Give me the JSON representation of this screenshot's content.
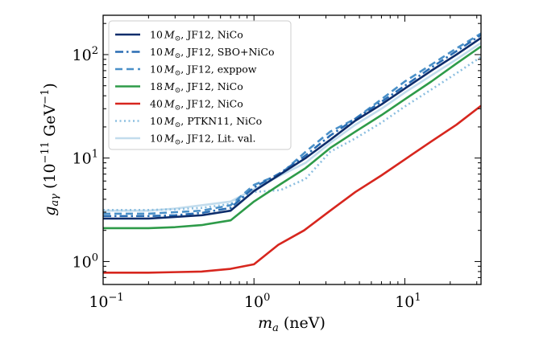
{
  "chart_data": {
    "type": "line",
    "title": "",
    "xlabel": "m_a (neV)",
    "ylabel": "g_aγ (10^-11 GeV^-1)",
    "xscale": "log",
    "yscale": "log",
    "xlim": [
      0.1,
      32
    ],
    "ylim": [
      0.6,
      240
    ],
    "grid": false,
    "legend_position": "top-left",
    "x_ticks": [
      {
        "value": 0.1,
        "mantissa": "10",
        "exponent": "−1"
      },
      {
        "value": 1,
        "mantissa": "10",
        "exponent": "0"
      },
      {
        "value": 10,
        "mantissa": "10",
        "exponent": "1"
      }
    ],
    "y_ticks": [
      {
        "value": 1,
        "mantissa": "10",
        "exponent": "0"
      },
      {
        "value": 10,
        "mantissa": "10",
        "exponent": "1"
      },
      {
        "value": 100,
        "mantissa": "10",
        "exponent": "2"
      }
    ],
    "series": [
      {
        "name": "10 M⊙, JF12, NiCo",
        "color": "#0d2d6b",
        "style": "solid",
        "x": [
          0.1,
          0.2,
          0.3,
          0.45,
          0.7,
          1.0,
          1.5,
          2.2,
          3.2,
          4.7,
          7,
          10,
          15,
          22,
          32
        ],
        "y": [
          2.6,
          2.6,
          2.7,
          2.8,
          3.1,
          4.8,
          7.0,
          10.0,
          15.0,
          23.0,
          33.0,
          47.0,
          70.0,
          100.0,
          145.0
        ]
      },
      {
        "name": "10 M⊙, JF12, SBO+NiCo",
        "color": "#2a6db3",
        "style": "dashdot",
        "x": [
          0.1,
          0.2,
          0.3,
          0.45,
          0.7,
          1.0,
          1.5,
          2.2,
          3.2,
          4.7,
          7,
          10,
          15,
          22,
          32
        ],
        "y": [
          2.75,
          2.75,
          2.8,
          2.95,
          3.3,
          5.2,
          7.2,
          10.6,
          16.5,
          24.0,
          35.0,
          50.0,
          75.0,
          108.0,
          155.0
        ]
      },
      {
        "name": "10 M⊙, JF12, exppow",
        "color": "#4a90c8",
        "style": "dashed",
        "x": [
          0.1,
          0.2,
          0.3,
          0.45,
          0.7,
          1.0,
          1.5,
          2.2,
          3.2,
          4.7,
          7,
          10,
          15,
          22,
          32
        ],
        "y": [
          2.9,
          2.9,
          3.0,
          3.1,
          3.5,
          5.5,
          7.0,
          11.5,
          18.0,
          24.0,
          37.0,
          55.0,
          80.0,
          115.0,
          160.0
        ]
      },
      {
        "name": "18 M⊙, JF12, NiCo",
        "color": "#2e9b49",
        "style": "solid",
        "x": [
          0.1,
          0.2,
          0.3,
          0.45,
          0.7,
          1.0,
          1.5,
          2.2,
          3.2,
          4.7,
          7,
          10,
          15,
          22,
          32
        ],
        "y": [
          2.1,
          2.1,
          2.15,
          2.25,
          2.5,
          3.8,
          5.6,
          8.0,
          12.5,
          18.0,
          26.0,
          37.0,
          55.0,
          82.0,
          120.0
        ]
      },
      {
        "name": "40 M⊙, JF12, NiCo",
        "color": "#d7261e",
        "style": "solid",
        "x": [
          0.1,
          0.2,
          0.3,
          0.45,
          0.7,
          1.0,
          1.45,
          2.15,
          3.2,
          4.7,
          7,
          10,
          15,
          22,
          32
        ],
        "y": [
          0.78,
          0.78,
          0.79,
          0.8,
          0.85,
          0.94,
          1.45,
          2.0,
          3.1,
          4.7,
          6.8,
          9.7,
          14.5,
          21.0,
          32.0
        ]
      },
      {
        "name": "10 M⊙, PTKN11, NiCo",
        "color": "#8cbfe0",
        "style": "dotted",
        "x": [
          0.1,
          0.2,
          0.3,
          0.45,
          0.7,
          1.0,
          1.5,
          2.2,
          3.2,
          4.7,
          7,
          10,
          15,
          22,
          32
        ],
        "y": [
          3.15,
          3.15,
          3.2,
          3.3,
          3.6,
          4.7,
          4.9,
          6.3,
          11.5,
          15.5,
          22.0,
          31.5,
          46.0,
          66.0,
          95.0
        ]
      },
      {
        "name": "10 M⊙, JF12, Lit. val.",
        "color": "#c2dced",
        "style": "solid",
        "x": [
          0.1,
          0.2,
          0.3,
          0.45,
          0.7,
          1.0,
          1.5,
          2.2,
          3.2,
          4.7,
          7,
          10,
          15,
          22,
          32
        ],
        "y": [
          3.1,
          3.1,
          3.25,
          3.5,
          3.8,
          5.0,
          6.8,
          9.0,
          14.0,
          21.0,
          30.0,
          43.0,
          63.0,
          90.0,
          130.0
        ]
      }
    ],
    "legend": [
      {
        "mass": "10",
        "rest": ", JF12, NiCo"
      },
      {
        "mass": "10",
        "rest": ", JF12, SBO+NiCo"
      },
      {
        "mass": "10",
        "rest": ", JF12, exppow"
      },
      {
        "mass": "18",
        "rest": ", JF12, NiCo"
      },
      {
        "mass": "40",
        "rest": ", JF12, NiCo"
      },
      {
        "mass": "10",
        "rest": ", PTKN11, NiCo"
      },
      {
        "mass": "10",
        "rest": ", JF12, Lit. val."
      }
    ]
  }
}
